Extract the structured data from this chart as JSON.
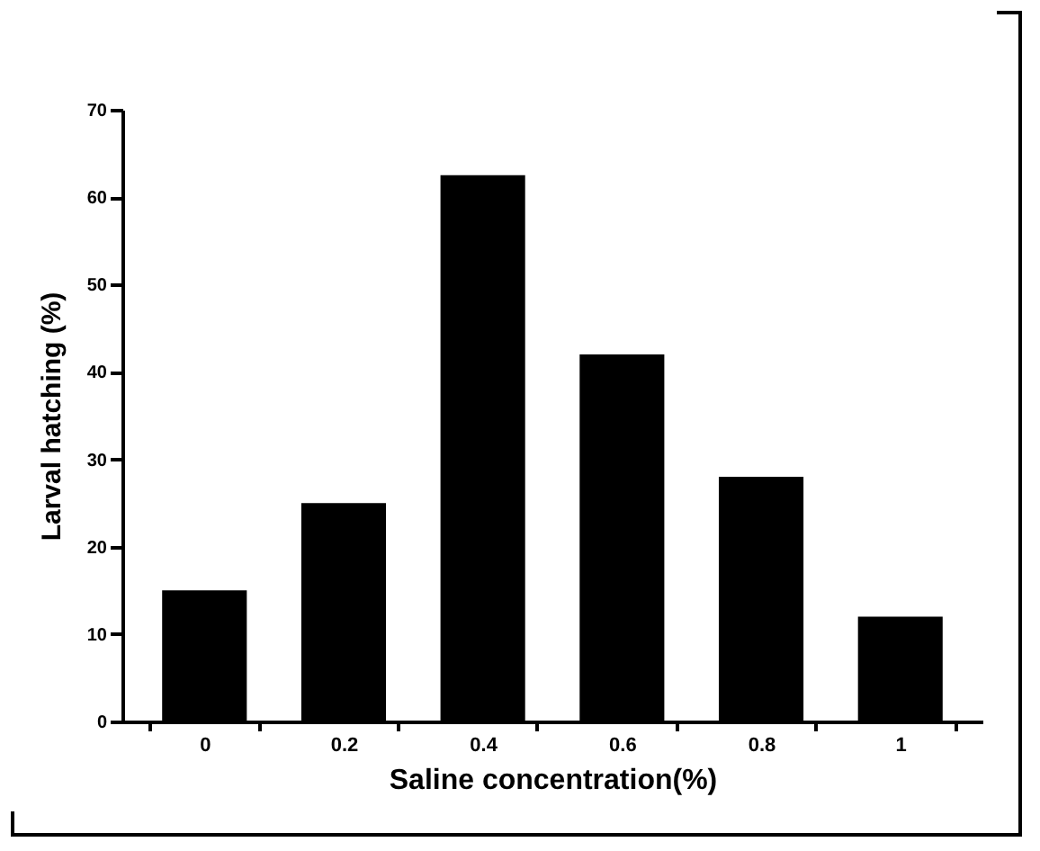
{
  "chart_data": {
    "type": "bar",
    "xlabel": "Saline concentration(%)",
    "ylabel": "Larval hatching (%)",
    "categories": [
      "0",
      "0.2",
      "0.4",
      "0.6",
      "0.8",
      "1"
    ],
    "values": [
      15,
      25,
      62.5,
      42,
      28,
      12
    ],
    "color": "#000000",
    "ylim": [
      0,
      70
    ],
    "yticks": [
      0,
      10,
      20,
      30,
      40,
      50,
      60,
      70
    ],
    "grid": false
  }
}
